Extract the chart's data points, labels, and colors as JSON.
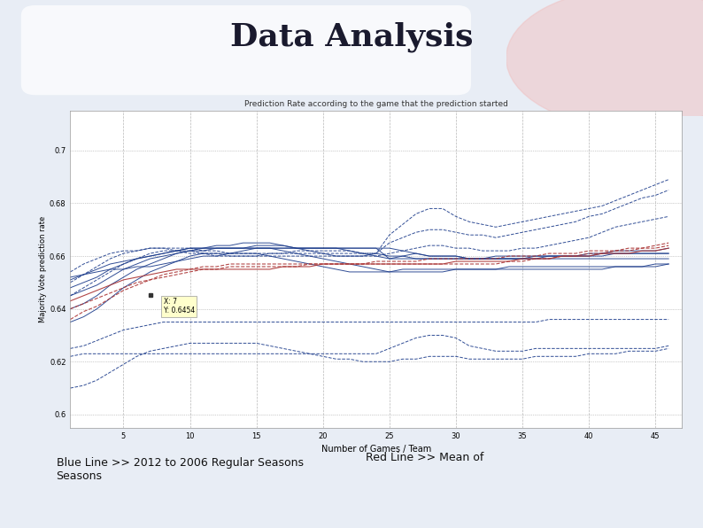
{
  "title": "Data Analysis",
  "subtitle": "Prediction Rate according to the game that the prediction started",
  "xlabel": "Number of Games / Team",
  "ylabel": "Majority Vote prediction rate",
  "xlim": [
    1,
    47
  ],
  "ylim": [
    0.595,
    0.715
  ],
  "yticks": [
    0.6,
    0.62,
    0.64,
    0.66,
    0.68,
    0.7
  ],
  "xticks": [
    5,
    10,
    15,
    20,
    25,
    30,
    35,
    40,
    45
  ],
  "bg_color": "#e8edf5",
  "plot_bg": "#ffffff",
  "title_color": "#1a1a2e",
  "footer_left": "Blue Line >> 2012 to 2006 Regular Seasons\nSeasons",
  "footer_right": "Red Line >> Mean of",
  "blue_color": "#1a3a8a",
  "red_color": "#aa3333",
  "x": [
    1,
    2,
    3,
    4,
    5,
    6,
    7,
    8,
    9,
    10,
    11,
    12,
    13,
    14,
    15,
    16,
    17,
    18,
    19,
    20,
    21,
    22,
    23,
    24,
    25,
    26,
    27,
    28,
    29,
    30,
    31,
    32,
    33,
    34,
    35,
    36,
    37,
    38,
    39,
    40,
    41,
    42,
    43,
    44,
    45,
    46
  ],
  "blue_lines": [
    [
      0.652,
      0.653,
      0.654,
      0.655,
      0.655,
      0.656,
      0.656,
      0.657,
      0.658,
      0.659,
      0.66,
      0.66,
      0.661,
      0.662,
      0.663,
      0.663,
      0.663,
      0.663,
      0.663,
      0.663,
      0.663,
      0.663,
      0.663,
      0.663,
      0.659,
      0.66,
      0.661,
      0.66,
      0.66,
      0.66,
      0.659,
      0.659,
      0.659,
      0.659,
      0.659,
      0.659,
      0.66,
      0.66,
      0.66,
      0.66,
      0.661,
      0.661,
      0.661,
      0.661,
      0.661,
      0.661
    ],
    [
      0.651,
      0.653,
      0.655,
      0.657,
      0.658,
      0.659,
      0.66,
      0.661,
      0.662,
      0.663,
      0.663,
      0.663,
      0.663,
      0.663,
      0.664,
      0.664,
      0.664,
      0.663,
      0.662,
      0.661,
      0.66,
      0.66,
      0.66,
      0.661,
      0.66,
      0.66,
      0.659,
      0.659,
      0.659,
      0.659,
      0.659,
      0.659,
      0.659,
      0.659,
      0.659,
      0.66,
      0.66,
      0.66,
      0.66,
      0.661,
      0.661,
      0.662,
      0.662,
      0.662,
      0.662,
      0.663
    ],
    [
      0.648,
      0.65,
      0.652,
      0.655,
      0.657,
      0.659,
      0.66,
      0.661,
      0.662,
      0.663,
      0.663,
      0.664,
      0.664,
      0.665,
      0.665,
      0.665,
      0.664,
      0.663,
      0.663,
      0.663,
      0.663,
      0.663,
      0.663,
      0.663,
      0.663,
      0.662,
      0.661,
      0.66,
      0.66,
      0.66,
      0.659,
      0.659,
      0.66,
      0.66,
      0.66,
      0.66,
      0.66,
      0.66,
      0.66,
      0.66,
      0.66,
      0.661,
      0.661,
      0.661,
      0.661,
      0.661
    ],
    [
      0.645,
      0.647,
      0.649,
      0.652,
      0.655,
      0.657,
      0.659,
      0.66,
      0.661,
      0.662,
      0.662,
      0.663,
      0.663,
      0.663,
      0.663,
      0.663,
      0.663,
      0.663,
      0.663,
      0.663,
      0.663,
      0.662,
      0.661,
      0.66,
      0.659,
      0.659,
      0.659,
      0.659,
      0.659,
      0.659,
      0.659,
      0.659,
      0.659,
      0.659,
      0.659,
      0.659,
      0.659,
      0.659,
      0.659,
      0.659,
      0.659,
      0.659,
      0.659,
      0.659,
      0.659,
      0.659
    ],
    [
      0.64,
      0.642,
      0.645,
      0.649,
      0.652,
      0.655,
      0.657,
      0.659,
      0.661,
      0.662,
      0.663,
      0.663,
      0.663,
      0.663,
      0.663,
      0.663,
      0.662,
      0.661,
      0.66,
      0.659,
      0.658,
      0.657,
      0.656,
      0.655,
      0.654,
      0.654,
      0.654,
      0.654,
      0.654,
      0.655,
      0.655,
      0.655,
      0.655,
      0.655,
      0.655,
      0.655,
      0.655,
      0.655,
      0.655,
      0.655,
      0.655,
      0.656,
      0.656,
      0.656,
      0.657,
      0.657
    ],
    [
      0.635,
      0.637,
      0.64,
      0.644,
      0.648,
      0.651,
      0.654,
      0.656,
      0.658,
      0.66,
      0.661,
      0.661,
      0.661,
      0.661,
      0.661,
      0.66,
      0.659,
      0.658,
      0.657,
      0.656,
      0.655,
      0.654,
      0.654,
      0.654,
      0.654,
      0.655,
      0.655,
      0.655,
      0.655,
      0.655,
      0.655,
      0.655,
      0.655,
      0.656,
      0.656,
      0.656,
      0.656,
      0.656,
      0.656,
      0.656,
      0.656,
      0.656,
      0.656,
      0.656,
      0.656,
      0.657
    ],
    [
      0.654,
      0.657,
      0.659,
      0.661,
      0.662,
      0.662,
      0.663,
      0.663,
      0.662,
      0.661,
      0.661,
      0.66,
      0.66,
      0.66,
      0.66,
      0.661,
      0.661,
      0.662,
      0.662,
      0.662,
      0.662,
      0.662,
      0.661,
      0.661,
      0.668,
      0.672,
      0.676,
      0.678,
      0.678,
      0.675,
      0.673,
      0.672,
      0.671,
      0.672,
      0.673,
      0.674,
      0.675,
      0.676,
      0.677,
      0.678,
      0.679,
      0.681,
      0.683,
      0.685,
      0.687,
      0.689
    ],
    [
      0.65,
      0.653,
      0.656,
      0.659,
      0.661,
      0.662,
      0.663,
      0.663,
      0.663,
      0.663,
      0.662,
      0.662,
      0.661,
      0.661,
      0.661,
      0.661,
      0.661,
      0.661,
      0.661,
      0.661,
      0.661,
      0.661,
      0.661,
      0.661,
      0.665,
      0.667,
      0.669,
      0.67,
      0.67,
      0.669,
      0.668,
      0.668,
      0.667,
      0.668,
      0.669,
      0.67,
      0.671,
      0.672,
      0.673,
      0.675,
      0.676,
      0.678,
      0.68,
      0.682,
      0.683,
      0.685
    ],
    [
      0.645,
      0.648,
      0.651,
      0.654,
      0.657,
      0.659,
      0.661,
      0.662,
      0.662,
      0.662,
      0.661,
      0.661,
      0.66,
      0.66,
      0.66,
      0.66,
      0.66,
      0.66,
      0.66,
      0.66,
      0.66,
      0.66,
      0.66,
      0.66,
      0.661,
      0.662,
      0.663,
      0.664,
      0.664,
      0.663,
      0.663,
      0.662,
      0.662,
      0.662,
      0.663,
      0.663,
      0.664,
      0.665,
      0.666,
      0.667,
      0.669,
      0.671,
      0.672,
      0.673,
      0.674,
      0.675
    ],
    [
      0.625,
      0.626,
      0.628,
      0.63,
      0.632,
      0.633,
      0.634,
      0.635,
      0.635,
      0.635,
      0.635,
      0.635,
      0.635,
      0.635,
      0.635,
      0.635,
      0.635,
      0.635,
      0.635,
      0.635,
      0.635,
      0.635,
      0.635,
      0.635,
      0.635,
      0.635,
      0.635,
      0.635,
      0.635,
      0.635,
      0.635,
      0.635,
      0.635,
      0.635,
      0.635,
      0.635,
      0.636,
      0.636,
      0.636,
      0.636,
      0.636,
      0.636,
      0.636,
      0.636,
      0.636,
      0.636
    ],
    [
      0.622,
      0.623,
      0.623,
      0.623,
      0.623,
      0.623,
      0.623,
      0.623,
      0.623,
      0.623,
      0.623,
      0.623,
      0.623,
      0.623,
      0.623,
      0.623,
      0.623,
      0.623,
      0.623,
      0.623,
      0.623,
      0.623,
      0.623,
      0.623,
      0.625,
      0.627,
      0.629,
      0.63,
      0.63,
      0.629,
      0.626,
      0.625,
      0.624,
      0.624,
      0.624,
      0.625,
      0.625,
      0.625,
      0.625,
      0.625,
      0.625,
      0.625,
      0.625,
      0.625,
      0.625,
      0.626
    ],
    [
      0.61,
      0.611,
      0.613,
      0.616,
      0.619,
      0.622,
      0.624,
      0.625,
      0.626,
      0.627,
      0.627,
      0.627,
      0.627,
      0.627,
      0.627,
      0.626,
      0.625,
      0.624,
      0.623,
      0.622,
      0.621,
      0.621,
      0.62,
      0.62,
      0.62,
      0.621,
      0.621,
      0.622,
      0.622,
      0.622,
      0.621,
      0.621,
      0.621,
      0.621,
      0.621,
      0.622,
      0.622,
      0.622,
      0.622,
      0.623,
      0.623,
      0.623,
      0.624,
      0.624,
      0.624,
      0.625
    ]
  ],
  "red_lines": [
    [
      0.64,
      0.642,
      0.644,
      0.646,
      0.648,
      0.65,
      0.651,
      0.652,
      0.653,
      0.654,
      0.655,
      0.655,
      0.656,
      0.656,
      0.656,
      0.656,
      0.656,
      0.656,
      0.657,
      0.657,
      0.657,
      0.657,
      0.657,
      0.657,
      0.657,
      0.657,
      0.657,
      0.657,
      0.657,
      0.657,
      0.657,
      0.657,
      0.657,
      0.658,
      0.658,
      0.659,
      0.659,
      0.66,
      0.66,
      0.661,
      0.661,
      0.662,
      0.662,
      0.663,
      0.663,
      0.664
    ],
    [
      0.636,
      0.639,
      0.641,
      0.644,
      0.647,
      0.649,
      0.651,
      0.653,
      0.654,
      0.655,
      0.656,
      0.656,
      0.657,
      0.657,
      0.657,
      0.657,
      0.657,
      0.657,
      0.657,
      0.657,
      0.657,
      0.657,
      0.657,
      0.658,
      0.658,
      0.658,
      0.658,
      0.659,
      0.659,
      0.659,
      0.659,
      0.659,
      0.659,
      0.66,
      0.66,
      0.66,
      0.661,
      0.661,
      0.661,
      0.662,
      0.662,
      0.662,
      0.663,
      0.663,
      0.664,
      0.665
    ],
    [
      0.643,
      0.645,
      0.647,
      0.649,
      0.651,
      0.652,
      0.653,
      0.654,
      0.655,
      0.655,
      0.655,
      0.655,
      0.655,
      0.655,
      0.655,
      0.655,
      0.656,
      0.656,
      0.656,
      0.657,
      0.657,
      0.657,
      0.657,
      0.657,
      0.657,
      0.657,
      0.657,
      0.657,
      0.657,
      0.658,
      0.658,
      0.658,
      0.658,
      0.658,
      0.659,
      0.659,
      0.659,
      0.66,
      0.66,
      0.66,
      0.661,
      0.661,
      0.661,
      0.662,
      0.662,
      0.663
    ]
  ],
  "blue_styles": [
    "solid",
    "solid",
    "solid",
    "solid",
    "solid",
    "solid",
    "dashed",
    "dashed",
    "dashed",
    "dashed",
    "dashed",
    "dashed"
  ],
  "red_styles": [
    "dashed",
    "dashed",
    "solid"
  ]
}
